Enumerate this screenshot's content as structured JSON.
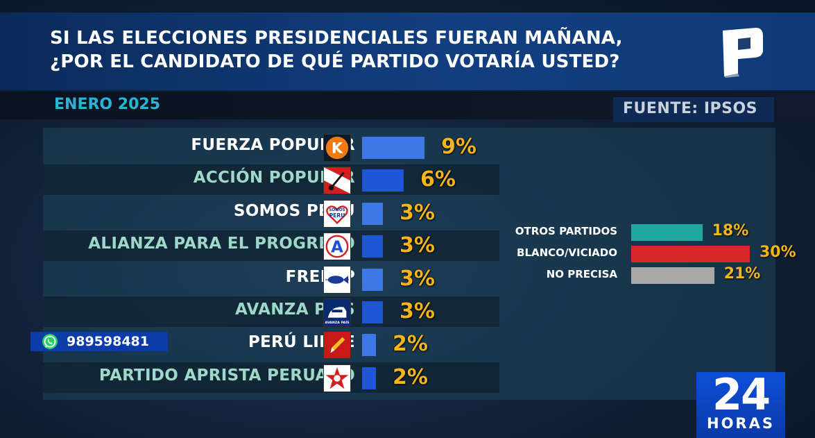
{
  "header": {
    "title_line1": "SI LAS ELECCIONES PRESIDENCIALES FUERAN MAÑANA,",
    "title_line2": "¿POR EL CANDIDATO DE QUÉ PARTIDO VOTARÍA USTED?",
    "date": "ENERO 2025",
    "source": "FUENTE: IPSOS"
  },
  "whatsapp": {
    "number": "989598481",
    "icon": "whatsapp-icon"
  },
  "channel": {
    "number": "24",
    "word": "HORAS",
    "logo": "panamericana-logo"
  },
  "colors": {
    "accent_bar": "#1f56d6",
    "percent": "#f2b51d",
    "date_text": "#29b6d6"
  },
  "chart_data": [
    {
      "type": "bar",
      "orientation": "horizontal",
      "categories": [
        "FUERZA POPULAR",
        "ACCIÓN POPULAR",
        "SOMOS PERÚ",
        "ALIANZA PARA EL PROGRESO",
        "FREPAP",
        "AVANZA PAÍS",
        "PERÚ LIBRE",
        "PARTIDO APRISTA PERUANO"
      ],
      "values": [
        9,
        6,
        3,
        3,
        3,
        3,
        2,
        2
      ],
      "labels": [
        "9%",
        "6%",
        "3%",
        "3%",
        "3%",
        "3%",
        "2%",
        "2%"
      ],
      "unit": "%",
      "name_colors": [
        "#ffffff",
        "#9ed8c8",
        "#ffffff",
        "#9ed8c8",
        "#ffffff",
        "#9ed8c8",
        "#ffffff",
        "#9ed8c8"
      ],
      "bar_colors": [
        "#3d78e6",
        "#1f56d6",
        "#3d78e6",
        "#1f56d6",
        "#3d78e6",
        "#1f56d6",
        "#3d78e6",
        "#1f56d6"
      ],
      "logo_icons": [
        "fuerza-popular-k-icon",
        "accion-popular-shovel-icon",
        "somos-peru-heart-icon",
        "app-a-icon",
        "frepap-fish-icon",
        "avanza-pais-train-icon",
        "peru-libre-pencil-icon",
        "apra-star-icon"
      ]
    },
    {
      "type": "bar",
      "orientation": "horizontal",
      "categories": [
        "OTROS PARTIDOS",
        "BLANCO/VICIADO",
        "NO PRECISA"
      ],
      "values": [
        18,
        30,
        21
      ],
      "labels": [
        "18%",
        "30%",
        "21%"
      ],
      "unit": "%",
      "bar_colors": [
        "#1fa8a0",
        "#d8272b",
        "#a8a8a8"
      ]
    }
  ]
}
